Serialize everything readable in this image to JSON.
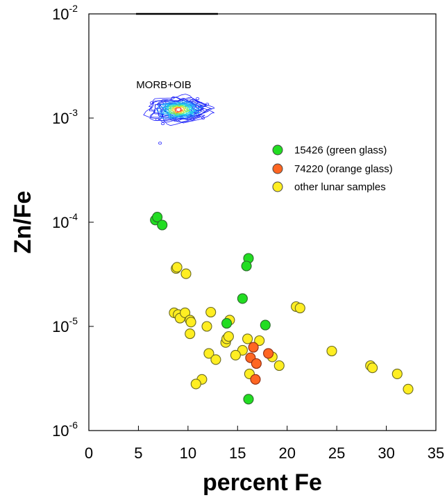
{
  "chart_data": {
    "type": "scatter",
    "xlabel": "percent Fe",
    "ylabel": "Zn/Fe",
    "xlim": [
      0,
      35
    ],
    "ylim": [
      1e-06,
      0.01
    ],
    "yscale": "log",
    "grid": false,
    "legend_placement": "top-right",
    "x_ticks": [
      "0",
      "5",
      "10",
      "15",
      "20",
      "25",
      "30",
      "35"
    ],
    "y_ticks": [
      {
        "base": "10",
        "exp": "-6"
      },
      {
        "base": "10",
        "exp": "-5"
      },
      {
        "base": "10",
        "exp": "-4"
      },
      {
        "base": "10",
        "exp": "-3"
      },
      {
        "base": "10",
        "exp": "-2"
      }
    ],
    "annotations": [
      {
        "text": "MORB+OIB",
        "region": "density contours centered near x=9 %Fe, y=1.2e-3"
      }
    ],
    "series": [
      {
        "name": "15426 (green glass)",
        "color": "#22dd22",
        "points": [
          [
            6.7,
            0.000105
          ],
          [
            6.9,
            0.000112
          ],
          [
            7.4,
            9.4e-05
          ],
          [
            16.1,
            4.5e-05
          ],
          [
            15.9,
            3.8e-05
          ],
          [
            15.5,
            1.85e-05
          ],
          [
            13.9,
            1.07e-05
          ],
          [
            17.8,
            1.03e-05
          ],
          [
            16.1,
            2e-06
          ]
        ]
      },
      {
        "name": "74220 (orange glass)",
        "color": "#ff6622",
        "points": [
          [
            16.6,
            6.3e-06
          ],
          [
            18.1,
            5.5e-06
          ],
          [
            16.3,
            5e-06
          ],
          [
            16.9,
            4.4e-06
          ],
          [
            16.8,
            3.1e-06
          ]
        ]
      },
      {
        "name": "other lunar samples",
        "color": "#ffee22",
        "points": [
          [
            8.8,
            3.6e-05
          ],
          [
            8.9,
            3.7e-05
          ],
          [
            9.8,
            3.2e-05
          ],
          [
            8.6,
            1.35e-05
          ],
          [
            9.0,
            1.3e-05
          ],
          [
            9.2,
            1.2e-05
          ],
          [
            9.7,
            1.35e-05
          ],
          [
            10.2,
            1.15e-05
          ],
          [
            10.3,
            1.1e-05
          ],
          [
            10.2,
            8.5e-06
          ],
          [
            11.9,
            1e-05
          ],
          [
            12.3,
            1.37e-05
          ],
          [
            14.2,
            1.15e-05
          ],
          [
            13.8,
            7e-06
          ],
          [
            13.9,
            7.6e-06
          ],
          [
            14.1,
            8e-06
          ],
          [
            16.0,
            7.6e-06
          ],
          [
            17.2,
            7.3e-06
          ],
          [
            15.5,
            5.9e-06
          ],
          [
            14.8,
            5.3e-06
          ],
          [
            12.1,
            5.5e-06
          ],
          [
            12.8,
            4.8e-06
          ],
          [
            18.5,
            5.1e-06
          ],
          [
            19.2,
            4.2e-06
          ],
          [
            16.2,
            3.5e-06
          ],
          [
            11.4,
            3.1e-06
          ],
          [
            10.8,
            2.8e-06
          ],
          [
            20.9,
            1.55e-05
          ],
          [
            21.3,
            1.5e-05
          ],
          [
            24.5,
            5.8e-06
          ],
          [
            28.4,
            4.2e-06
          ],
          [
            28.6,
            4e-06
          ],
          [
            31.1,
            3.5e-06
          ],
          [
            32.2,
            2.5e-06
          ]
        ]
      }
    ]
  }
}
